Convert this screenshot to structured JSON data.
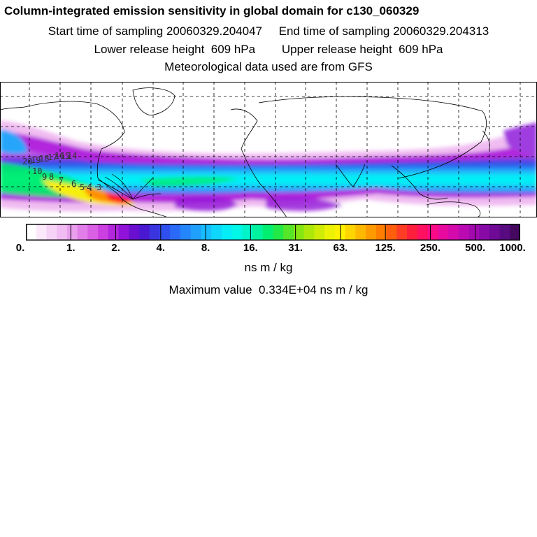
{
  "header": {
    "title": "Column-integrated emission sensitivity in global domain for c130_060329",
    "sampling": "Start time of sampling 20060329.204047     End time of sampling 20060329.204313",
    "release": "Lower release height  609 hPa        Upper release height  609 hPa",
    "met": "Meteorological data used are from GFS"
  },
  "colorbar": {
    "tick_labels": [
      "0.",
      "1.",
      "2.",
      "4.",
      "8.",
      "16.",
      "31.",
      "63.",
      "125.",
      "250.",
      "500.",
      "1000."
    ],
    "units": "ns m / kg",
    "colors": [
      "#ffffff",
      "#fbe8fb",
      "#f6d2f6",
      "#f0bcf1",
      "#ea9eee",
      "#e27ee9",
      "#d95fe4",
      "#cc3fe0",
      "#b227dd",
      "#9112d8",
      "#6a0fcf",
      "#4a18d0",
      "#3a35df",
      "#2f50ee",
      "#2a6af6",
      "#2585fb",
      "#1fa0fd",
      "#17bcfe",
      "#0ed6fd",
      "#05eef8",
      "#00f6e6",
      "#00f4c8",
      "#00f29e",
      "#00ef70",
      "#22e848",
      "#55e62a",
      "#86e614",
      "#aee80b",
      "#cfec07",
      "#ecf203",
      "#fff200",
      "#ffd500",
      "#ffb800",
      "#ff9b00",
      "#ff7e00",
      "#ff5f0d",
      "#ff3d25",
      "#ff1f3c",
      "#ff1060",
      "#f90a86",
      "#e80a9e",
      "#d40aab",
      "#bc0ab2",
      "#a20ab0",
      "#880aa6",
      "#6e0a96",
      "#580a80",
      "#44085f"
    ]
  },
  "map": {
    "tracer_labels": [
      "20",
      "19",
      "18",
      "17",
      "16",
      "15",
      "14",
      "10",
      "9",
      "8",
      "7",
      "6",
      "5",
      "4",
      "3"
    ],
    "colors": {
      "low_violet": "#e9a8f2",
      "purple": "#a03ce0",
      "blue": "#2e4be6",
      "sky": "#26a6fb",
      "cyan": "#06eef6",
      "green": "#00ee5e",
      "yellow": "#f6ee08",
      "orange": "#ff8f00",
      "red": "#ff2328",
      "coast": "#000000",
      "grid": "#000000"
    }
  },
  "footer": {
    "max_value": "Maximum value  0.334E+04 ns m / kg"
  }
}
